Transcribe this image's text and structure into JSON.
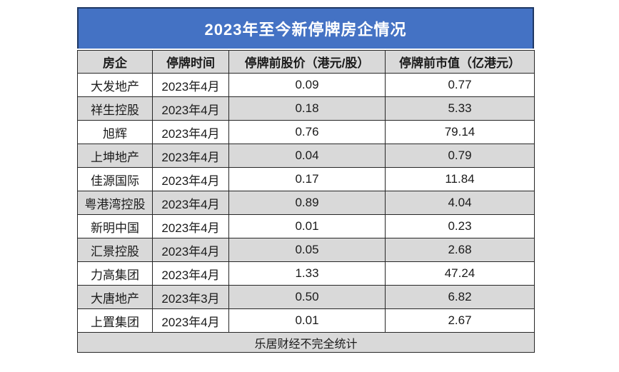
{
  "colors": {
    "title_bg": "#4472C4",
    "title_text": "#FFFFFF",
    "title_border": "#1F3864",
    "header_bg": "#D9D9D9",
    "row_bg": "#FFFFFF",
    "row_alt_bg": "#D9D9D9",
    "border": "#262626",
    "page_bg": "#FFFFFF"
  },
  "chart_data": {
    "type": "table",
    "title": "2023年至今新停牌房企情况",
    "columns": [
      "房企",
      "停牌时间",
      "停牌前股价（港元/股）",
      "停牌前市值（亿港元）"
    ],
    "column_keys": [
      "company",
      "suspension-date",
      "pre-suspension-price-hkd-per-share",
      "pre-suspension-market-cap-100m-hkd"
    ],
    "rows": [
      [
        "大发地产",
        "2023年4月",
        "0.09",
        "0.77"
      ],
      [
        "祥生控股",
        "2023年4月",
        "0.18",
        "5.33"
      ],
      [
        "旭辉",
        "2023年4月",
        "0.76",
        "79.14"
      ],
      [
        "上坤地产",
        "2023年4月",
        "0.04",
        "0.79"
      ],
      [
        "佳源国际",
        "2023年4月",
        "0.17",
        "11.84"
      ],
      [
        "粤港湾控股",
        "2023年4月",
        "0.89",
        "4.04"
      ],
      [
        "新明中国",
        "2023年4月",
        "0.01",
        "0.23"
      ],
      [
        "汇景控股",
        "2023年4月",
        "0.05",
        "2.68"
      ],
      [
        "力高集团",
        "2023年4月",
        "1.33",
        "47.24"
      ],
      [
        "大唐地产",
        "2023年3月",
        "0.50",
        "6.82"
      ],
      [
        "上置集团",
        "2023年4月",
        "0.01",
        "2.67"
      ]
    ],
    "footer": "乐居财经不完全统计",
    "layout": {
      "striped": true,
      "stripe_pattern": "even-rows-gray",
      "text_align": "center"
    }
  }
}
